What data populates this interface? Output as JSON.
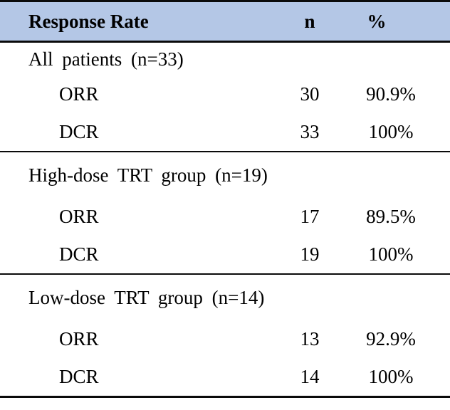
{
  "table": {
    "header": {
      "col_label": "Response Rate",
      "col_n": "n",
      "col_pct": "%"
    },
    "sections": [
      {
        "label": "All patients (n=33)",
        "rows": [
          {
            "label": "ORR",
            "n": "30",
            "pct": "90.9%"
          },
          {
            "label": "DCR",
            "n": "33",
            "pct": "100%"
          }
        ]
      },
      {
        "label": "High-dose TRT group (n=19)",
        "rows": [
          {
            "label": "ORR",
            "n": "17",
            "pct": "89.5%"
          },
          {
            "label": "DCR",
            "n": "19",
            "pct": "100%"
          }
        ]
      },
      {
        "label": "Low-dose TRT group (n=14)",
        "rows": [
          {
            "label": "ORR",
            "n": "13",
            "pct": "92.9%"
          },
          {
            "label": "DCR",
            "n": "14",
            "pct": "100%"
          }
        ]
      }
    ],
    "colors": {
      "header_bg": "#b4c7e6",
      "border": "#0a0a0a",
      "text": "#000000"
    }
  }
}
